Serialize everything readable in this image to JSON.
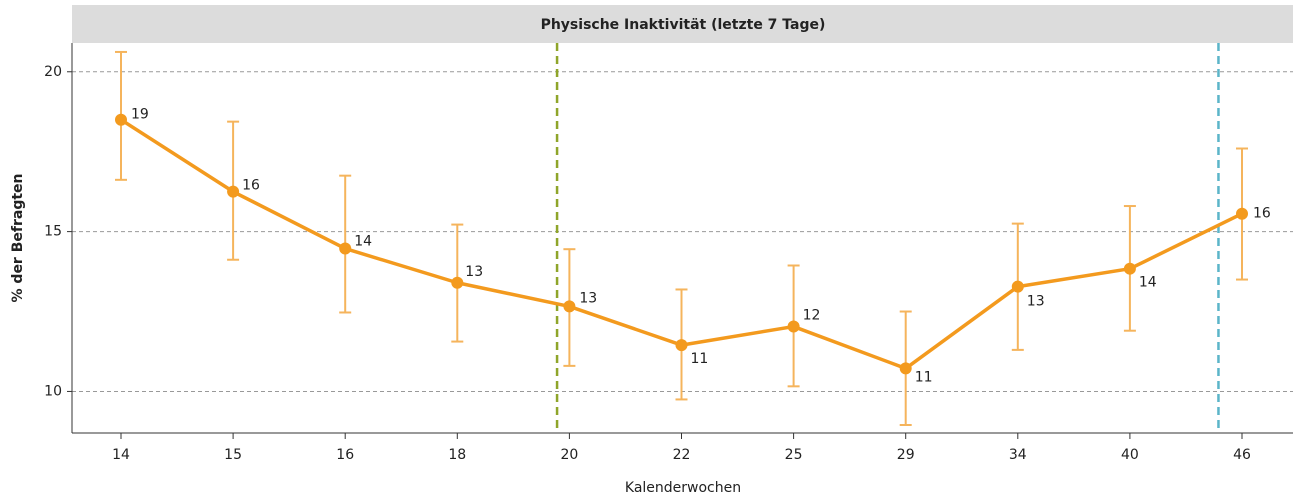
{
  "chart_data": {
    "type": "line",
    "title": "Physische Inaktivität (letzte 7 Tage)",
    "x_label": "Kalenderwochen",
    "y_label": "% der Befragten",
    "categories": [
      "14",
      "15",
      "16",
      "18",
      "20",
      "22",
      "25",
      "29",
      "34",
      "40",
      "46"
    ],
    "series": [
      {
        "color": "#f39a1e",
        "error_color": "#f5b45c",
        "values": [
          18.5,
          16.25,
          14.47,
          13.4,
          12.66,
          11.45,
          12.03,
          10.72,
          13.28,
          13.84,
          15.56
        ],
        "value_labels": [
          "19",
          "16",
          "14",
          "13",
          "13",
          "11",
          "12",
          "11",
          "13",
          "14",
          "16"
        ],
        "lower": [
          16.62,
          14.12,
          12.47,
          11.56,
          10.8,
          9.75,
          10.16,
          8.95,
          11.3,
          11.9,
          13.5
        ],
        "upper": [
          20.62,
          18.44,
          16.75,
          15.22,
          14.45,
          13.19,
          13.94,
          12.5,
          15.25,
          15.8,
          17.6
        ]
      }
    ],
    "reference_lines": [
      {
        "position": 3.89,
        "color": "#8fa52a"
      },
      {
        "position": 9.79,
        "color": "#5bb5c9"
      }
    ],
    "ylim": [
      8.7,
      20.9
    ],
    "yticks": [
      10,
      15,
      20
    ],
    "grid": true
  }
}
